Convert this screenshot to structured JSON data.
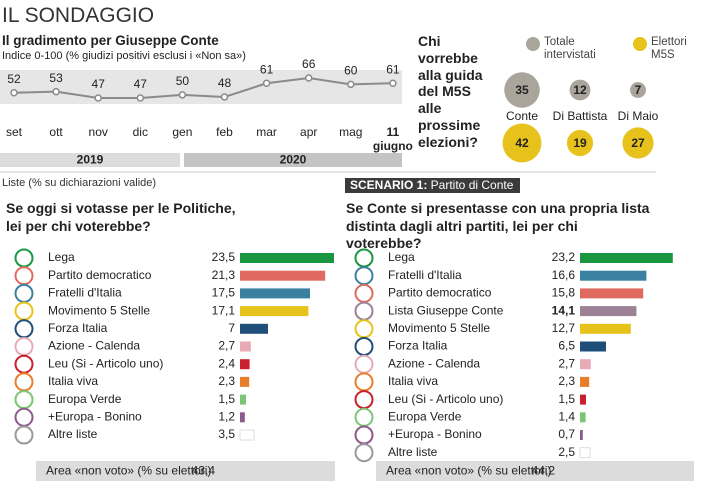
{
  "header": "IL SONDAGGIO",
  "chart_data": [
    {
      "type": "line",
      "title": "Il gradimento per Giuseppe Conte",
      "subtitle": "Indice 0-100 (% giudizi positivi esclusi i «Non sa»)",
      "categories": [
        "set",
        "ott",
        "nov",
        "dic",
        "gen",
        "feb",
        "mar",
        "apr",
        "mag",
        "11 giugno"
      ],
      "values": [
        52,
        53,
        47,
        47,
        50,
        48,
        61,
        66,
        60,
        61
      ],
      "color": "#8a8a8a",
      "years": [
        "2019",
        "2020"
      ]
    },
    {
      "type": "bubble",
      "title": "Chi vorrebbe alla guida del M5S alle prossime elezioni?",
      "categories": [
        "Conte",
        "Di Battista",
        "Di Maio"
      ],
      "series": [
        {
          "name": "Totale intervistati",
          "color": "#a9a59b",
          "values": [
            35,
            12,
            7
          ]
        },
        {
          "name": "Elettori M5S",
          "color": "#e8c21c",
          "values": [
            42,
            19,
            27
          ]
        }
      ]
    },
    {
      "type": "barh",
      "note": "Liste (% su dichiarazioni valide)",
      "title": "Se oggi si votasse per le Politiche, lei per chi voterebbe?",
      "categories": [
        "Lega",
        "Partito democratico",
        "Fratelli d'Italia",
        "Movimento 5 Stelle",
        "Forza Italia",
        "Azione - Calenda",
        "Leu (Si - Articolo uno)",
        "Italia viva",
        "Europa Verde",
        "+Europa - Bonino",
        "Altre liste"
      ],
      "values": [
        23.5,
        21.3,
        17.5,
        17.1,
        7,
        2.7,
        2.4,
        2.3,
        1.5,
        1.2,
        3.5
      ],
      "value_labels": [
        "23,5",
        "21,3",
        "17,5",
        "17,1",
        "7",
        "2,7",
        "2,4",
        "2,3",
        "1,5",
        "1,2",
        "3,5"
      ],
      "colors": [
        "#1a9641",
        "#e06a60",
        "#3a80a0",
        "#e6c21a",
        "#1f4e79",
        "#e8aab6",
        "#c8202c",
        "#e87d2a",
        "#7cc576",
        "#8b5a8b",
        "#ffffff"
      ],
      "footer": {
        "label": "Area «non voto» (% su elettori)",
        "value": 43.4,
        "value_label": "43,4"
      }
    },
    {
      "type": "barh",
      "header": "SCENARIO 1: Partito di Conte",
      "title": "Se Conte si presentasse con una propria lista distinta dagli altri partiti, lei per chi voterebbe?",
      "categories": [
        "Lega",
        "Fratelli d'Italia",
        "Partito democratico",
        "Lista Giuseppe Conte",
        "Movimento 5 Stelle",
        "Forza Italia",
        "Azione - Calenda",
        "Italia viva",
        "Leu (Si - Articolo uno)",
        "Europa Verde",
        "+Europa - Bonino",
        "Altre liste"
      ],
      "values": [
        23.2,
        16.6,
        15.8,
        14.1,
        12.7,
        6.5,
        2.7,
        2.3,
        1.5,
        1.4,
        0.7,
        2.5
      ],
      "value_labels": [
        "23,2",
        "16,6",
        "15,8",
        "14,1",
        "12,7",
        "6,5",
        "2,7",
        "2,3",
        "1,5",
        "1,4",
        "0,7",
        "2,5"
      ],
      "colors": [
        "#1a9641",
        "#3a80a0",
        "#e06a60",
        "#9c8196",
        "#e6c21a",
        "#1f4e79",
        "#e8aab6",
        "#e87d2a",
        "#c8202c",
        "#7cc576",
        "#8b5a8b",
        "#ffffff"
      ],
      "highlight": 3,
      "footer": {
        "label": "Area «non voto» (% su elettori)",
        "value": 44.2,
        "value_label": "44,2"
      }
    }
  ]
}
